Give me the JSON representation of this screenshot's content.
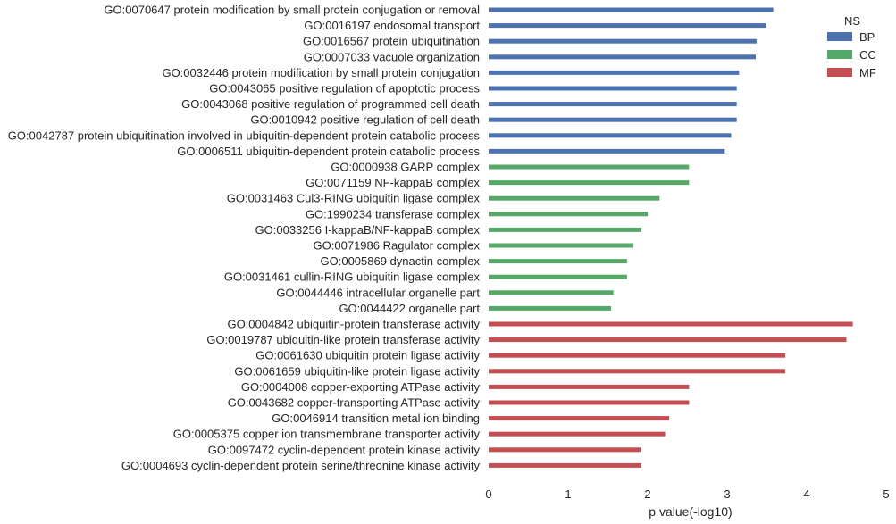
{
  "chart_data": {
    "type": "bar",
    "orientation": "horizontal",
    "xlabel": "p value(-log10)",
    "xlim": [
      0,
      5
    ],
    "xticks": [
      "0",
      "1",
      "2",
      "3",
      "4",
      "5"
    ],
    "grid": false,
    "legend": {
      "title": "NS",
      "placement": "top-right",
      "entries": [
        {
          "name": "BP",
          "color": "#4c72b0"
        },
        {
          "name": "CC",
          "color": "#55a868"
        },
        {
          "name": "MF",
          "color": "#c44e52"
        }
      ]
    },
    "bars": [
      {
        "label": "GO:0070647 protein modification by small protein conjugation or removal",
        "group": "BP",
        "value": 3.58
      },
      {
        "label": "GO:0016197 endosomal transport",
        "group": "BP",
        "value": 3.49
      },
      {
        "label": "GO:0016567 protein ubiquitination",
        "group": "BP",
        "value": 3.37
      },
      {
        "label": "GO:0007033 vacuole organization",
        "group": "BP",
        "value": 3.36
      },
      {
        "label": "GO:0032446 protein modification by small protein conjugation",
        "group": "BP",
        "value": 3.15
      },
      {
        "label": "GO:0043065 positive regulation of apoptotic process",
        "group": "BP",
        "value": 3.12
      },
      {
        "label": "GO:0043068 positive regulation of programmed cell death",
        "group": "BP",
        "value": 3.12
      },
      {
        "label": "GO:0010942 positive regulation of cell death",
        "group": "BP",
        "value": 3.12
      },
      {
        "label": "GO:0042787 protein ubiquitination involved in ubiquitin-dependent protein catabolic process",
        "group": "BP",
        "value": 3.05
      },
      {
        "label": "GO:0006511 ubiquitin-dependent protein catabolic process",
        "group": "BP",
        "value": 2.97
      },
      {
        "label": "GO:0000938 GARP complex",
        "group": "CC",
        "value": 2.52
      },
      {
        "label": "GO:0071159 NF-kappaB complex",
        "group": "CC",
        "value": 2.52
      },
      {
        "label": "GO:0031463 Cul3-RING ubiquitin ligase complex",
        "group": "CC",
        "value": 2.15
      },
      {
        "label": "GO:1990234 transferase complex",
        "group": "CC",
        "value": 2.0
      },
      {
        "label": "GO:0033256 I-kappaB/NF-kappaB complex",
        "group": "CC",
        "value": 1.92
      },
      {
        "label": "GO:0071986 Ragulator complex",
        "group": "CC",
        "value": 1.82
      },
      {
        "label": "GO:0005869 dynactin complex",
        "group": "CC",
        "value": 1.74
      },
      {
        "label": "GO:0031461 cullin-RING ubiquitin ligase complex",
        "group": "CC",
        "value": 1.74
      },
      {
        "label": "GO:0044446 intracellular organelle part",
        "group": "CC",
        "value": 1.57
      },
      {
        "label": "GO:0044422 organelle part",
        "group": "CC",
        "value": 1.54
      },
      {
        "label": "GO:0004842 ubiquitin-protein transferase activity",
        "group": "MF",
        "value": 4.58
      },
      {
        "label": "GO:0019787 ubiquitin-like protein transferase activity",
        "group": "MF",
        "value": 4.5
      },
      {
        "label": "GO:0061630 ubiquitin protein ligase activity",
        "group": "MF",
        "value": 3.73
      },
      {
        "label": "GO:0061659 ubiquitin-like protein ligase activity",
        "group": "MF",
        "value": 3.73
      },
      {
        "label": "GO:0004008 copper-exporting ATPase activity",
        "group": "MF",
        "value": 2.52
      },
      {
        "label": "GO:0043682 copper-transporting ATPase activity",
        "group": "MF",
        "value": 2.52
      },
      {
        "label": "GO:0046914 transition metal ion binding",
        "group": "MF",
        "value": 2.27
      },
      {
        "label": "GO:0005375 copper ion transmembrane transporter activity",
        "group": "MF",
        "value": 2.22
      },
      {
        "label": "GO:0097472 cyclin-dependent protein kinase activity",
        "group": "MF",
        "value": 1.92
      },
      {
        "label": "GO:0004693 cyclin-dependent protein serine/threonine kinase activity",
        "group": "MF",
        "value": 1.92
      }
    ]
  }
}
